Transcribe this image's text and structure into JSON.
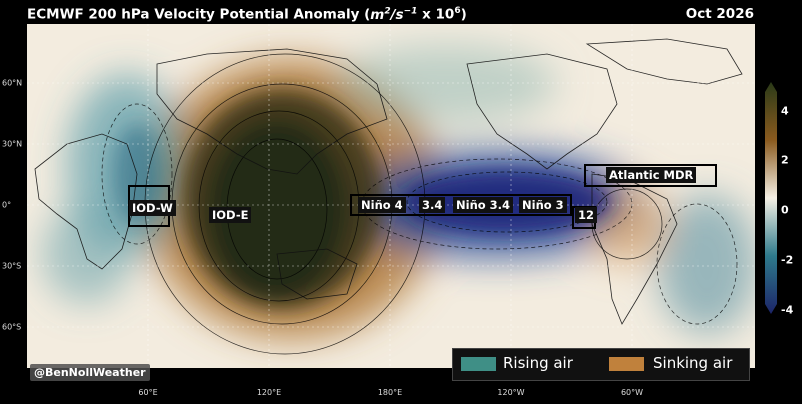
{
  "header": {
    "title_main": "ECMWF 200 hPa Velocity Potential Anomaly (",
    "title_unit_m": "m",
    "title_unit_sup2": "2",
    "title_unit_s": "/s",
    "title_unit_supm1": "−1",
    "title_mult": " x 10",
    "title_sup6": "6",
    "title_close": ")",
    "date": "Oct 2026"
  },
  "lat_labels": [
    "60°N",
    "30°N",
    "0°",
    "30°S",
    "60°S"
  ],
  "lon_labels": [
    "60°E",
    "120°E",
    "180°E",
    "120°W",
    "60°W"
  ],
  "regions": {
    "iod_w": "IOD-W",
    "iod_e": "IOD-E",
    "nino4": "Niño 4",
    "nino34_short": "3.4",
    "nino34": "Niño 3.4",
    "nino3": "Niño 3",
    "nino12": "12",
    "atlantic": "Atlantic MDR"
  },
  "legend": {
    "rising_label": "Rising air",
    "rising_color": "#3f8f86",
    "sinking_label": "Sinking air",
    "sinking_color": "#c0813c"
  },
  "colorbar": {
    "ticks": [
      "4",
      "2",
      "0",
      "-2",
      "-4"
    ],
    "colors_top_to_bottom": [
      "#2a3a18",
      "#8a5a1e",
      "#f4efe4",
      "#2e7a8c",
      "#1c2468"
    ]
  },
  "credit": "@BenNollWeather"
}
